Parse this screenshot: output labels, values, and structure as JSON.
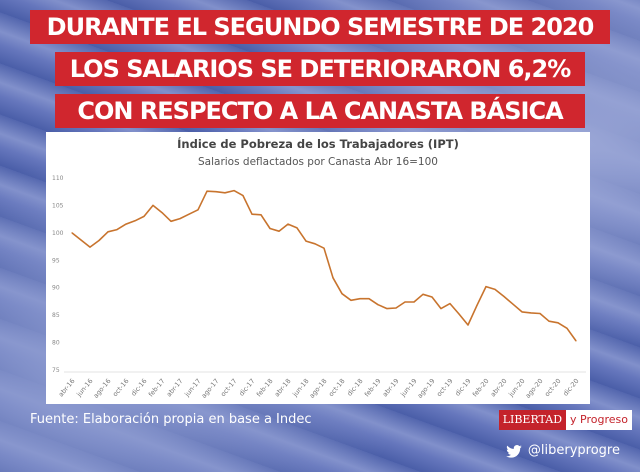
{
  "headline": {
    "line1": "DURANTE EL SEGUNDO SEMESTRE DE 2020",
    "line2": "LOS SALARIOS SE DETERIORARON 6,2%",
    "line3": "CON RESPECTO A LA CANASTA BÁSICA"
  },
  "footer": {
    "source": "Fuente: Elaboración propia en base a Indec",
    "logo_left": "LIBERTAD",
    "logo_right": "y Progreso",
    "twitter_handle": "@liberyprogre"
  },
  "colors": {
    "banner": "#d0262e",
    "line": "#c8742e"
  },
  "chart_data": {
    "type": "line",
    "title": "Índice de Pobreza de los Trabajadores (IPT)",
    "subtitle": "Salarios deflactados por Canasta Abr 16=100",
    "xlabel": "",
    "ylabel": "",
    "ylim": [
      75,
      110
    ],
    "yticks": [
      75,
      80,
      85,
      90,
      95,
      100,
      105,
      110
    ],
    "xtick_labels": [
      "abr-16",
      "jun-16",
      "ago-16",
      "oct-16",
      "dic-16",
      "feb-17",
      "abr-17",
      "jun-17",
      "ago-17",
      "oct-17",
      "dic-17",
      "feb-18",
      "abr-18",
      "jun-18",
      "ago-18",
      "oct-18",
      "dic-18",
      "feb-19",
      "abr-19",
      "jun-19",
      "ago-19",
      "oct-19",
      "dic-19",
      "feb-20",
      "abr-20",
      "jun-20",
      "ago-20",
      "oct-20",
      "dic-20"
    ],
    "grid": false,
    "series": [
      {
        "name": "IPT",
        "values": [
          100.0,
          98.7,
          97.4,
          98.6,
          100.2,
          100.6,
          101.6,
          102.2,
          103.0,
          105.0,
          103.7,
          102.1,
          102.6,
          103.4,
          104.2,
          107.6,
          107.5,
          107.3,
          107.7,
          106.8,
          103.4,
          103.3,
          100.8,
          100.3,
          101.6,
          100.9,
          98.5,
          98.0,
          97.2,
          91.8,
          88.9,
          87.7,
          88.0,
          88.0,
          86.9,
          86.2,
          86.3,
          87.4,
          87.4,
          88.8,
          88.3,
          86.2,
          87.1,
          85.2,
          83.2,
          86.8,
          90.2,
          89.7,
          88.4,
          87.0,
          85.6,
          85.4,
          85.3,
          83.9,
          83.6,
          82.6,
          80.3
        ]
      }
    ]
  }
}
